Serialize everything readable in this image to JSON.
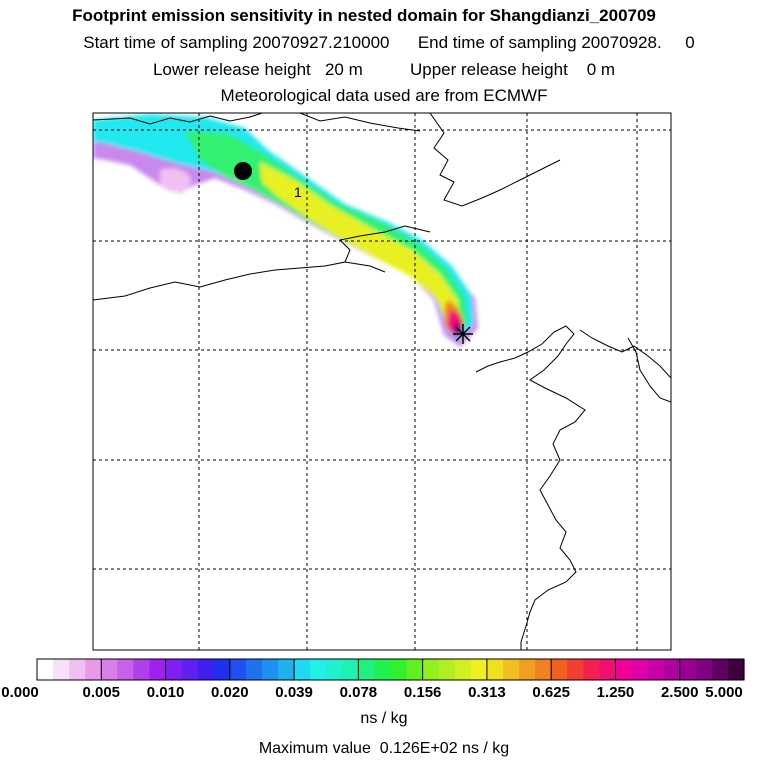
{
  "header": {
    "title": "Footprint emission sensitivity in nested domain for Shangdianzi_200709",
    "start_label": "Start time of sampling",
    "start_value": "20070927.210000",
    "end_label": "End time of sampling",
    "end_value": "20070928.     0",
    "lower_label": "Lower release height",
    "lower_value": "20 m",
    "upper_label": "Upper release height",
    "upper_value": "0 m",
    "met_source": "Meteorological data used are from ECMWF"
  },
  "map": {
    "plume_label": "1",
    "colors": {
      "coast": "#000000",
      "grid": "#000000",
      "marker": "#000000"
    }
  },
  "colorbar": {
    "tick_labels": [
      "0.000",
      "0.005",
      "0.010",
      "0.020",
      "0.039",
      "0.078",
      "0.156",
      "0.313",
      "0.625",
      "1.250",
      "2.500",
      "5.000"
    ],
    "colors": [
      "#ffffff",
      "#f8e0f8",
      "#f0c0f0",
      "#e89ae8",
      "#d880e8",
      "#c860e8",
      "#b040e8",
      "#a020f0",
      "#8020f0",
      "#6020f0",
      "#4020f0",
      "#2030f0",
      "#2050f0",
      "#2070f0",
      "#2090f0",
      "#20b0f0",
      "#20d8f0",
      "#20f0e8",
      "#20f0d0",
      "#20f0b0",
      "#20f080",
      "#20f050",
      "#30f030",
      "#60f020",
      "#90f020",
      "#b0f020",
      "#d0f020",
      "#f0f020",
      "#f0e020",
      "#f0c020",
      "#f0a020",
      "#f08020",
      "#f06020",
      "#f04030",
      "#f02050",
      "#f01070",
      "#f00098",
      "#e000a8",
      "#c800a8",
      "#b000a0",
      "#980090",
      "#800080",
      "#600060",
      "#400040"
    ],
    "units": "ns / kg"
  },
  "footer": {
    "max_label": "Maximum value",
    "max_value": "0.126E+02",
    "max_units": "ns / kg"
  }
}
